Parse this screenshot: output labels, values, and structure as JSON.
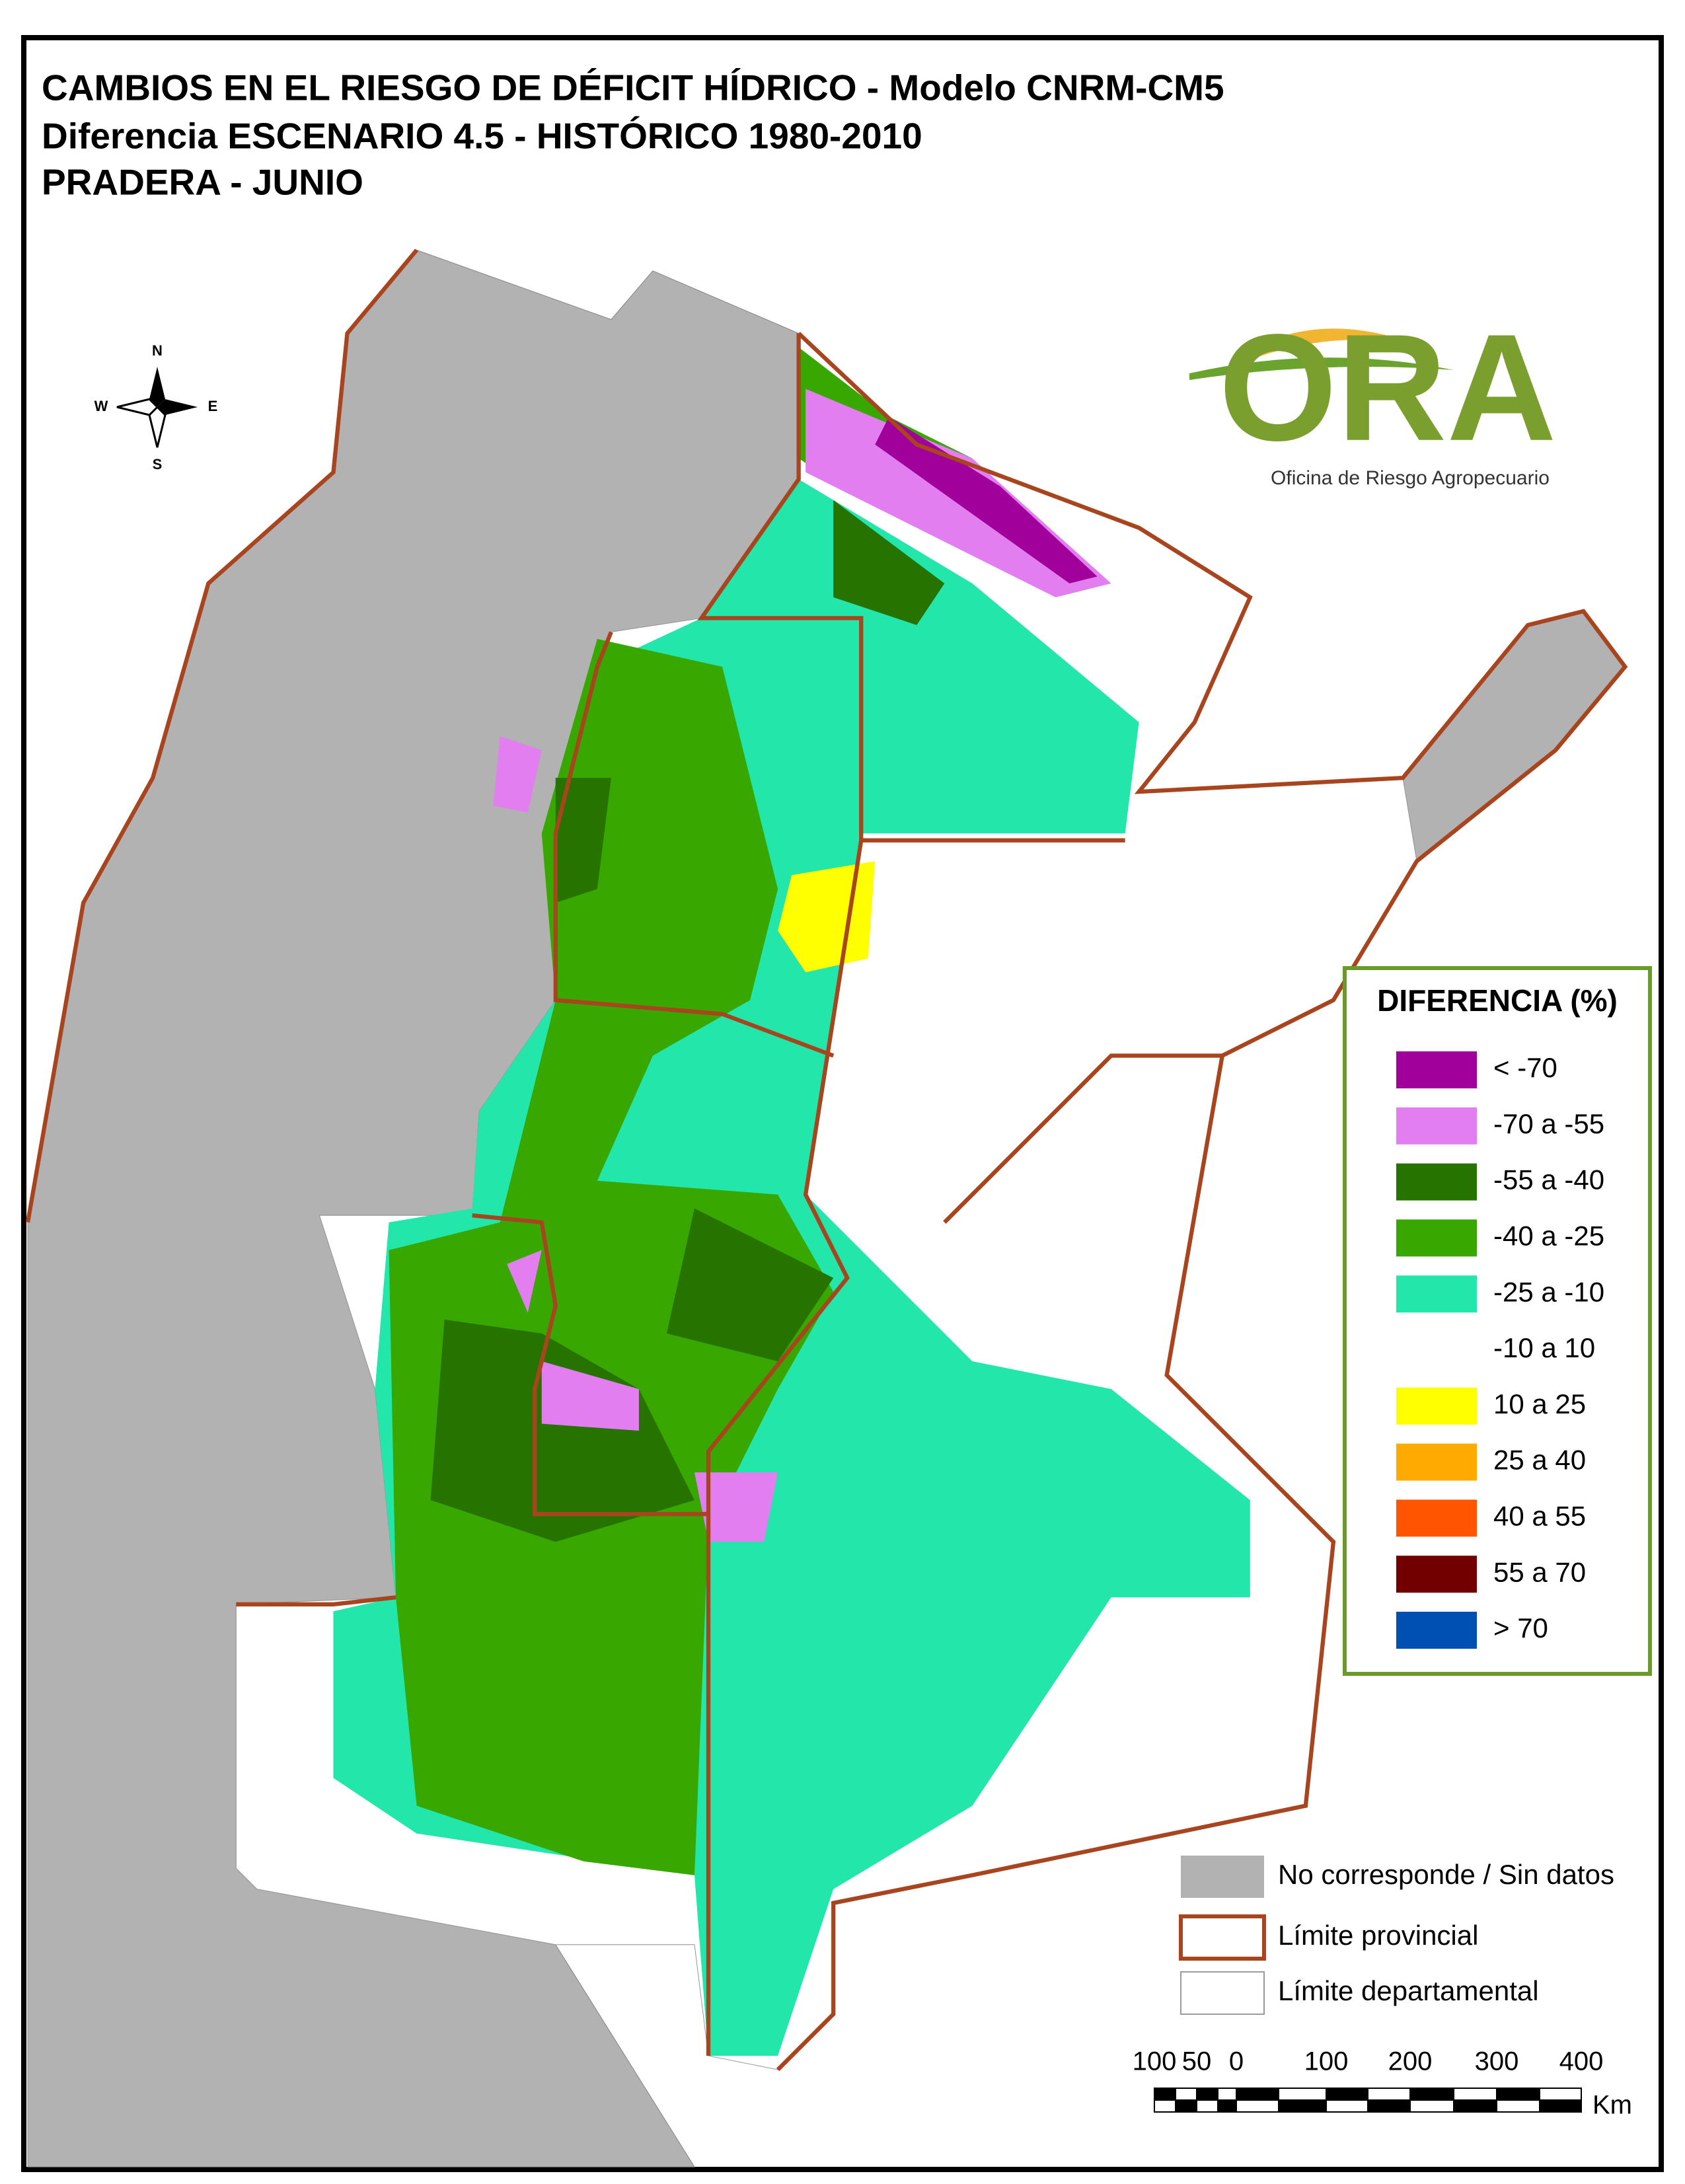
{
  "title_lines": [
    "CAMBIOS EN EL RIESGO DE DÉFICIT HÍDRICO - Modelo CNRM-CM5",
    "Diferencia ESCENARIO 4.5 - HISTÓRICO 1980-2010",
    "PRADERA - JUNIO"
  ],
  "compass": {
    "n": "N",
    "s": "S",
    "e": "E",
    "w": "W"
  },
  "logo": {
    "name": "ORA",
    "subtitle": "Oficina de Riesgo Agropecuario"
  },
  "legend": {
    "title": "DIFERENCIA (%)",
    "items": [
      {
        "label": "< -70",
        "color": "#a1009a"
      },
      {
        "label": "-70 a -55",
        "color": "#e27ef0"
      },
      {
        "label": "-55 a -40",
        "color": "#267300"
      },
      {
        "label": "-40 a -25",
        "color": "#38a800"
      },
      {
        "label": "-25 a -10",
        "color": "#22e6aa"
      },
      {
        "label": "-10 a 10",
        "color": "#ffffff"
      },
      {
        "label": "10 a 25",
        "color": "#ffff00"
      },
      {
        "label": "25 a 40",
        "color": "#ffaa00"
      },
      {
        "label": "40 a 55",
        "color": "#ff5500"
      },
      {
        "label": "55 a 70",
        "color": "#730000"
      },
      {
        "label": "> 70",
        "color": "#0050b4"
      }
    ]
  },
  "reference": [
    {
      "label": "No corresponde / Sin datos",
      "color": "#b2b2b2"
    },
    {
      "label": "Límite provincial",
      "color": "#a8451f"
    },
    {
      "label": "Límite departamental",
      "color": "#9a9a9a"
    }
  ],
  "scale_bar": {
    "labels": [
      "100",
      "50",
      "0",
      "100",
      "200",
      "300",
      "400"
    ],
    "unit": "Km"
  }
}
